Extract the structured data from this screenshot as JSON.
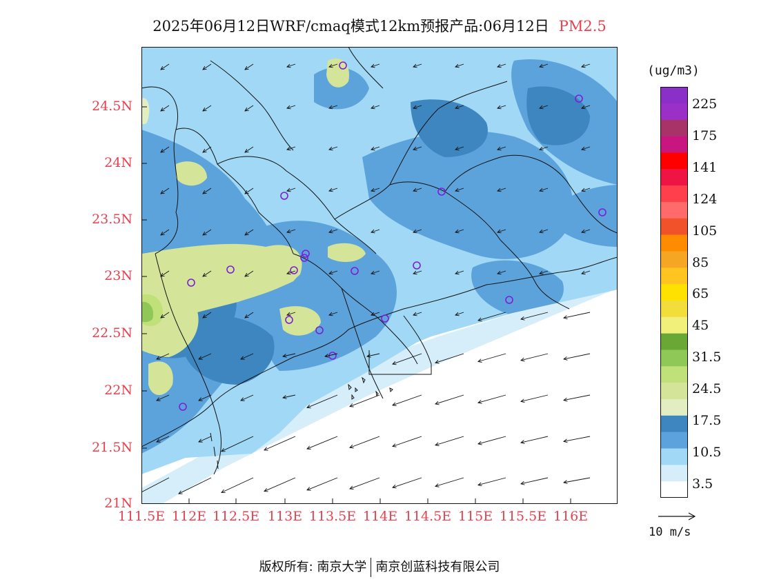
{
  "header": {
    "title": "2025年06月12日WRF/cmaq模式12km预报产品:06月12日",
    "pollutant": "PM2.5"
  },
  "map": {
    "lat_ticks": [
      "24.5N",
      "24N",
      "23.5N",
      "23N",
      "22.5N",
      "22N",
      "21.5N",
      "21N"
    ],
    "lon_ticks": [
      "111.5E",
      "112E",
      "112.5E",
      "113E",
      "113.5E",
      "114E",
      "114.5E",
      "115E",
      "115.5E",
      "116E"
    ],
    "station_marker_icon": "circle-marker-icon",
    "wind_arrow_icon": "wind-arrow-icon"
  },
  "legend": {
    "unit": "(ug/m3)",
    "labels": [
      "225",
      "175",
      "141",
      "124",
      "105",
      "85",
      "65",
      "45",
      "31.5",
      "24.5",
      "17.5",
      "10.5",
      "3.5"
    ],
    "colors": [
      "#8b2fc9",
      "#9b30c8",
      "#a83368",
      "#c81580",
      "#ff0000",
      "#ee1545",
      "#ff3f4c",
      "#ff6b6b",
      "#f0522a",
      "#ff8c00",
      "#f5a623",
      "#ffc420",
      "#ffe100",
      "#f2de3a",
      "#f0f07a",
      "#6aa836",
      "#8fc857",
      "#c0e07a",
      "#d4e59a",
      "#e3edc2",
      "#3d86c0",
      "#5ca3dc",
      "#a0d8f6",
      "#d6eefa",
      "#ffffff"
    ]
  },
  "reference_vector": {
    "label": "10 m/s"
  },
  "footer": {
    "copyright": "版权所有: 南京大学",
    "company": "南京创蓝科技有限公司"
  }
}
